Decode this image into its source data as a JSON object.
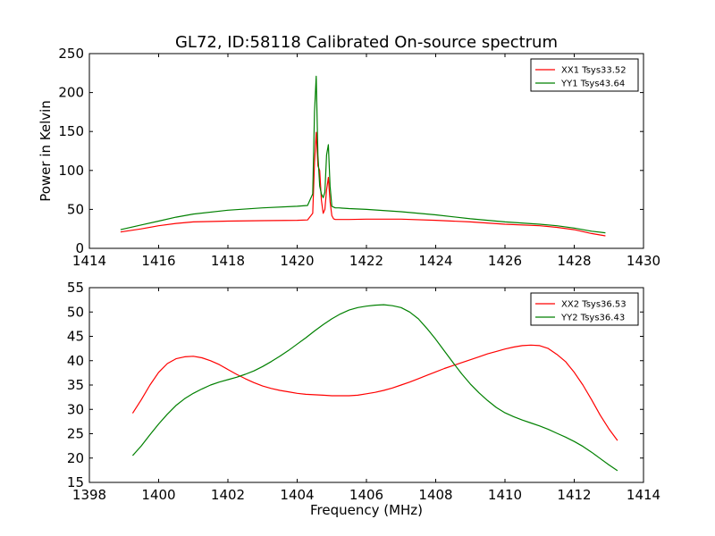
{
  "figure": {
    "title": "GL72, ID:58118 Calibrated On-source spectrum"
  },
  "chart_data": [
    {
      "type": "line",
      "title": "GL72, ID:58118 Calibrated On-source spectrum",
      "xlabel": "",
      "ylabel": "Power in Kelvin",
      "xlim": [
        1414,
        1430
      ],
      "ylim": [
        0,
        250
      ],
      "xticks": [
        1414,
        1416,
        1418,
        1420,
        1422,
        1424,
        1426,
        1428,
        1430
      ],
      "yticks": [
        0,
        50,
        100,
        150,
        200,
        250
      ],
      "legend_position": "top-right",
      "grid": false,
      "series": [
        {
          "name": "XX1 Tsys33.52",
          "color": "#ff0000",
          "x": [
            1414.9,
            1415.5,
            1416.0,
            1416.5,
            1417.0,
            1418.0,
            1419.0,
            1420.0,
            1420.3,
            1420.45,
            1420.5,
            1420.55,
            1420.6,
            1420.65,
            1420.7,
            1420.75,
            1420.8,
            1420.85,
            1420.9,
            1420.95,
            1421.0,
            1421.05,
            1421.1,
            1421.2,
            1421.5,
            1422.0,
            1423.0,
            1424.0,
            1425.0,
            1426.0,
            1427.0,
            1427.5,
            1428.0,
            1428.5,
            1428.9
          ],
          "values": [
            21,
            25,
            29,
            32,
            34,
            35,
            35.5,
            36,
            36.5,
            45,
            110,
            149,
            106,
            100,
            62,
            45,
            50,
            75,
            91,
            60,
            42,
            38,
            37,
            37,
            37,
            37.5,
            37.5,
            36,
            34,
            31,
            29,
            27,
            24,
            19,
            16
          ]
        },
        {
          "name": "YY1 Tsys43.64",
          "color": "#008000",
          "x": [
            1414.9,
            1415.5,
            1416.0,
            1416.5,
            1417.0,
            1418.0,
            1419.0,
            1420.0,
            1420.3,
            1420.45,
            1420.5,
            1420.55,
            1420.6,
            1420.65,
            1420.7,
            1420.75,
            1420.8,
            1420.85,
            1420.9,
            1420.95,
            1421.0,
            1421.05,
            1421.1,
            1421.2,
            1421.5,
            1422.0,
            1423.0,
            1424.0,
            1425.0,
            1426.0,
            1427.0,
            1427.5,
            1428.0,
            1428.5,
            1428.9
          ],
          "values": [
            24,
            30,
            35,
            40,
            44,
            49,
            52,
            54,
            55,
            70,
            175,
            221,
            120,
            80,
            70,
            65,
            72,
            120,
            133,
            80,
            54,
            53,
            52,
            52,
            51,
            50,
            47,
            43,
            38,
            34,
            31,
            29,
            26,
            22,
            20
          ]
        }
      ]
    },
    {
      "type": "line",
      "title": "",
      "xlabel": "Frequency (MHz)",
      "ylabel": "",
      "xlim": [
        1398,
        1414
      ],
      "ylim": [
        15,
        55
      ],
      "xticks": [
        1398,
        1400,
        1402,
        1404,
        1406,
        1408,
        1410,
        1412,
        1414
      ],
      "yticks": [
        15,
        20,
        25,
        30,
        35,
        40,
        45,
        50,
        55
      ],
      "legend_position": "top-right",
      "grid": false,
      "series": [
        {
          "name": "XX2 Tsys36.53",
          "color": "#ff0000",
          "x": [
            1399.25,
            1399.5,
            1399.75,
            1400.0,
            1400.25,
            1400.5,
            1400.75,
            1401.0,
            1401.25,
            1401.5,
            1401.75,
            1402.0,
            1402.25,
            1402.5,
            1402.75,
            1403.0,
            1403.25,
            1403.5,
            1403.75,
            1404.0,
            1404.25,
            1404.5,
            1404.75,
            1405.0,
            1405.25,
            1405.5,
            1405.75,
            1406.0,
            1406.25,
            1406.5,
            1406.75,
            1407.0,
            1407.25,
            1407.5,
            1407.75,
            1408.0,
            1408.25,
            1408.5,
            1408.75,
            1409.0,
            1409.25,
            1409.5,
            1409.75,
            1410.0,
            1410.25,
            1410.5,
            1410.75,
            1411.0,
            1411.25,
            1411.5,
            1411.75,
            1412.0,
            1412.25,
            1412.5,
            1412.75,
            1413.0,
            1413.25
          ],
          "values": [
            29.2,
            32.0,
            35.0,
            37.6,
            39.4,
            40.4,
            40.8,
            40.9,
            40.6,
            40.0,
            39.2,
            38.2,
            37.2,
            36.3,
            35.5,
            34.8,
            34.3,
            33.9,
            33.6,
            33.3,
            33.1,
            33.0,
            32.9,
            32.8,
            32.8,
            32.8,
            32.9,
            33.2,
            33.5,
            33.9,
            34.4,
            35.0,
            35.6,
            36.3,
            37.0,
            37.7,
            38.4,
            39.0,
            39.6,
            40.2,
            40.8,
            41.4,
            41.9,
            42.4,
            42.8,
            43.1,
            43.2,
            43.1,
            42.5,
            41.3,
            39.8,
            37.6,
            35.0,
            32.0,
            28.8,
            26.0,
            23.6
          ]
        },
        {
          "name": "YY2 Tsys36.43",
          "color": "#008000",
          "x": [
            1399.25,
            1399.5,
            1399.75,
            1400.0,
            1400.25,
            1400.5,
            1400.75,
            1401.0,
            1401.25,
            1401.5,
            1401.75,
            1402.0,
            1402.25,
            1402.5,
            1402.75,
            1403.0,
            1403.25,
            1403.5,
            1403.75,
            1404.0,
            1404.25,
            1404.5,
            1404.75,
            1405.0,
            1405.25,
            1405.5,
            1405.75,
            1406.0,
            1406.25,
            1406.5,
            1406.75,
            1407.0,
            1407.25,
            1407.5,
            1407.75,
            1408.0,
            1408.25,
            1408.5,
            1408.75,
            1409.0,
            1409.25,
            1409.5,
            1409.75,
            1410.0,
            1410.25,
            1410.5,
            1410.75,
            1411.0,
            1411.25,
            1411.5,
            1411.75,
            1412.0,
            1412.25,
            1412.5,
            1412.75,
            1413.0,
            1413.25
          ],
          "values": [
            20.5,
            22.5,
            24.8,
            27.0,
            29.0,
            30.8,
            32.2,
            33.3,
            34.2,
            35.0,
            35.6,
            36.1,
            36.6,
            37.2,
            37.9,
            38.8,
            39.8,
            40.9,
            42.1,
            43.4,
            44.7,
            46.1,
            47.4,
            48.6,
            49.6,
            50.4,
            50.9,
            51.2,
            51.4,
            51.5,
            51.3,
            50.9,
            50.0,
            48.6,
            46.6,
            44.4,
            42.0,
            39.6,
            37.3,
            35.2,
            33.4,
            31.8,
            30.4,
            29.3,
            28.5,
            27.8,
            27.2,
            26.6,
            25.9,
            25.1,
            24.3,
            23.4,
            22.4,
            21.2,
            19.9,
            18.6,
            17.4
          ]
        }
      ]
    }
  ]
}
